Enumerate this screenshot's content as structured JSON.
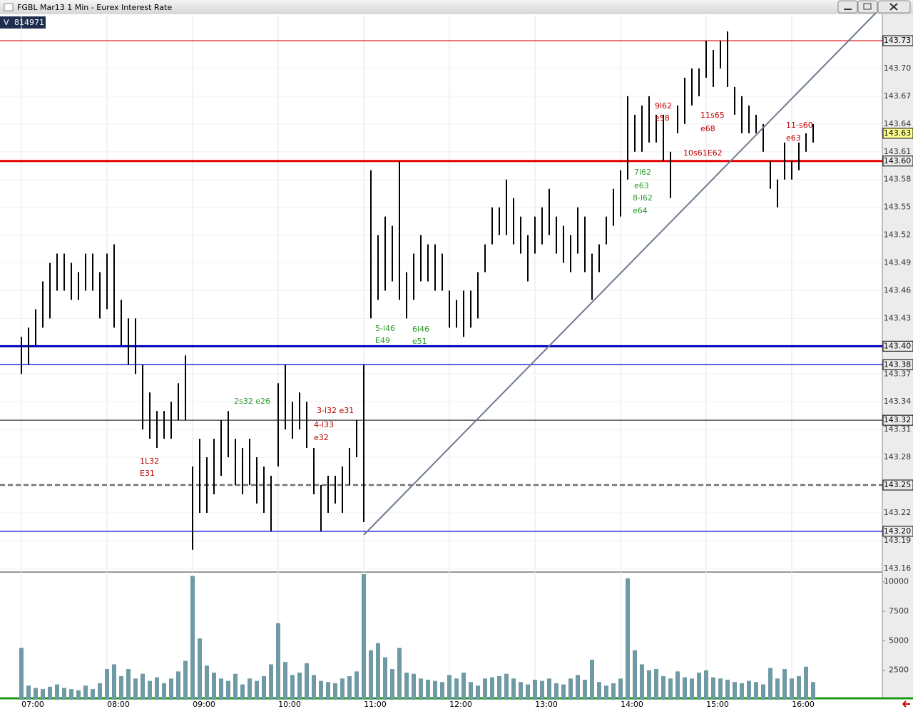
{
  "chart_data": [
    {
      "type": "range-bar",
      "title": "FGBL Mar13 1 Min - Eurex Interest Rate",
      "color": "#000000",
      "categories": [
        "07:00",
        null,
        null,
        null,
        null,
        null,
        null,
        null,
        null,
        null,
        null,
        null,
        "08:00",
        null,
        null,
        null,
        null,
        null,
        null,
        null,
        null,
        null,
        null,
        null,
        "09:00",
        null,
        null,
        null,
        null,
        null,
        null,
        null,
        null,
        null,
        null,
        null,
        "10:00",
        null,
        null,
        null,
        null,
        null,
        null,
        null,
        null,
        null,
        null,
        null,
        "11:00",
        null,
        null,
        null,
        null,
        null,
        null,
        null,
        null,
        null,
        null,
        null,
        "12:00",
        null,
        null,
        null,
        null,
        null,
        null,
        null,
        null,
        null,
        null,
        null,
        "13:00",
        null,
        null,
        null,
        null,
        null,
        null,
        null,
        null,
        null,
        null,
        null,
        "14:00",
        null,
        null,
        null,
        null,
        null,
        null,
        null,
        null,
        null,
        null,
        null,
        "15:00",
        null,
        null,
        null,
        null,
        null,
        null,
        null,
        null,
        null,
        null,
        null,
        "16:00",
        null,
        null,
        null
      ],
      "highs": [
        143.41,
        143.42,
        143.44,
        143.47,
        143.49,
        143.5,
        143.5,
        143.49,
        143.48,
        143.5,
        143.5,
        143.48,
        143.5,
        143.51,
        143.45,
        143.43,
        143.43,
        143.38,
        143.35,
        143.33,
        143.33,
        143.34,
        143.36,
        143.39,
        143.27,
        143.3,
        143.28,
        143.3,
        143.32,
        143.33,
        143.3,
        143.29,
        143.3,
        143.28,
        143.27,
        143.26,
        143.36,
        143.38,
        143.34,
        143.35,
        143.34,
        143.29,
        143.25,
        143.26,
        143.26,
        143.27,
        143.29,
        143.32,
        143.38,
        143.59,
        143.52,
        143.54,
        143.53,
        143.6,
        143.48,
        143.5,
        143.52,
        143.51,
        143.51,
        143.5,
        143.46,
        143.45,
        143.46,
        143.46,
        143.48,
        143.51,
        143.55,
        143.55,
        143.58,
        143.56,
        143.54,
        143.52,
        143.54,
        143.55,
        143.57,
        143.54,
        143.53,
        143.52,
        143.55,
        143.54,
        143.5,
        143.51,
        143.54,
        143.57,
        143.59,
        143.67,
        143.65,
        143.66,
        143.67,
        143.65,
        143.65,
        143.61,
        143.66,
        143.69,
        143.7,
        143.7,
        143.73,
        143.72,
        143.73,
        143.74,
        143.68,
        143.67,
        143.66,
        143.65,
        143.64,
        143.6,
        143.58,
        143.62,
        143.6,
        143.62,
        143.63,
        143.64
      ],
      "lows": [
        143.37,
        143.38,
        143.4,
        143.42,
        143.43,
        143.46,
        143.46,
        143.45,
        143.45,
        143.46,
        143.46,
        143.43,
        143.44,
        143.42,
        143.4,
        143.38,
        143.37,
        143.31,
        143.3,
        143.29,
        143.3,
        143.3,
        143.32,
        143.32,
        143.18,
        143.22,
        143.22,
        143.24,
        143.26,
        143.28,
        143.25,
        143.24,
        143.25,
        143.23,
        143.22,
        143.2,
        143.27,
        143.31,
        143.3,
        143.31,
        143.29,
        143.24,
        143.2,
        143.22,
        143.23,
        143.22,
        143.25,
        143.28,
        143.21,
        143.43,
        143.45,
        143.46,
        143.47,
        143.45,
        143.43,
        143.45,
        143.47,
        143.47,
        143.46,
        143.46,
        143.42,
        143.42,
        143.41,
        143.42,
        143.43,
        143.48,
        143.51,
        143.52,
        143.52,
        143.51,
        143.5,
        143.47,
        143.5,
        143.51,
        143.52,
        143.5,
        143.49,
        143.48,
        143.5,
        143.48,
        143.45,
        143.48,
        143.51,
        143.53,
        143.54,
        143.58,
        143.61,
        143.61,
        143.62,
        143.62,
        143.6,
        143.56,
        143.63,
        143.64,
        143.66,
        143.67,
        143.69,
        143.68,
        143.7,
        143.68,
        143.65,
        143.63,
        143.63,
        143.63,
        143.61,
        143.57,
        143.55,
        143.58,
        143.58,
        143.59,
        143.61,
        143.62
      ],
      "ylim": [
        143.156,
        143.757
      ],
      "yticks": [
        143.16,
        143.19,
        143.22,
        143.25,
        143.28,
        143.31,
        143.34,
        143.37,
        {
          "value": 143.4,
          "label": "143.40"
        },
        143.43,
        143.46,
        143.49,
        143.52,
        143.55,
        143.58,
        143.61,
        143.64,
        143.67,
        {
          "value": 143.7,
          "label": "143.70"
        }
      ],
      "levels": [
        {
          "value": 143.73,
          "color": "#e00000",
          "style": "light"
        },
        {
          "value": 143.6,
          "label": "143.60",
          "color": "#e00000",
          "style": "heavy"
        },
        {
          "value": 143.4,
          "label": "143.40",
          "color": "#0000c0",
          "style": "heavy"
        },
        {
          "value": 143.38,
          "color": "#0000e0",
          "style": "light"
        },
        {
          "value": 143.32,
          "color": "#333333",
          "style": "light"
        },
        {
          "value": 143.25,
          "color": "#707070",
          "style": "dashed"
        },
        {
          "value": 143.2,
          "label": "143.20",
          "color": "#0000e0",
          "style": "light"
        }
      ],
      "last": 143.63,
      "annotations": [
        {
          "text": "1L32",
          "color": "#c00000"
        },
        {
          "text": "E31",
          "color": "#c00000"
        },
        {
          "text": "2s32 e26",
          "color": "#2a9a2a"
        },
        {
          "text": "3-l32 e31",
          "color": "#c00000"
        },
        {
          "text": "4-l33",
          "color": "#c00000"
        },
        {
          "text": "e32",
          "color": "#c00000"
        },
        {
          "text": "5-l46",
          "color": "#2a9a2a"
        },
        {
          "text": "E49",
          "color": "#2a9a2a"
        },
        {
          "text": "6l46",
          "color": "#2a9a2a"
        },
        {
          "text": "e51",
          "color": "#2a9a2a"
        },
        {
          "text": "7l62",
          "color": "#2a9a2a"
        },
        {
          "text": "e63",
          "color": "#2a9a2a"
        },
        {
          "text": "8-l62",
          "color": "#2a9a2a"
        },
        {
          "text": "e64",
          "color": "#2a9a2a"
        },
        {
          "text": "9l62",
          "color": "#c00000"
        },
        {
          "text": "e58",
          "color": "#c00000"
        },
        {
          "text": "11s65",
          "color": "#c00000"
        },
        {
          "text": "e68",
          "color": "#c00000"
        },
        {
          "text": "10s61E62",
          "color": "#c00000"
        },
        {
          "text": "11-s60",
          "color": "#c00000"
        },
        {
          "text": "e63",
          "color": "#c00000"
        }
      ]
    },
    {
      "type": "bar",
      "label": "V",
      "total": 814971,
      "color": "#6f9aa5",
      "values": [
        4400,
        1200,
        1000,
        900,
        1100,
        1300,
        1000,
        900,
        800,
        1200,
        900,
        1400,
        2600,
        3000,
        2000,
        2600,
        1800,
        2200,
        1600,
        1900,
        1400,
        1800,
        2400,
        3300,
        10500,
        5200,
        2900,
        2300,
        1800,
        1600,
        2200,
        1300,
        1800,
        1600,
        2000,
        3000,
        6500,
        3200,
        2100,
        2300,
        3100,
        2100,
        1600,
        1500,
        1400,
        1800,
        2000,
        2400,
        10650,
        4200,
        4800,
        3600,
        2600,
        4400,
        2300,
        2200,
        1800,
        1700,
        1600,
        1500,
        2100,
        1800,
        2300,
        1500,
        1200,
        1800,
        1900,
        2000,
        2200,
        1800,
        1500,
        1300,
        1700,
        1600,
        1800,
        1400,
        1300,
        1800,
        2100,
        1700,
        3400,
        1500,
        1200,
        1400,
        1800,
        10300,
        4200,
        3000,
        2500,
        2600,
        2000,
        1800,
        2400,
        1900,
        1800,
        2300,
        2500,
        1900,
        1800,
        1700,
        1500,
        1400,
        1600,
        1500,
        1300,
        2700,
        1800,
        2600,
        1800,
        2000,
        2800,
        1500
      ],
      "ylim": [
        0,
        10650
      ],
      "yticks": [
        2500,
        5000,
        7500,
        10000
      ]
    }
  ]
}
